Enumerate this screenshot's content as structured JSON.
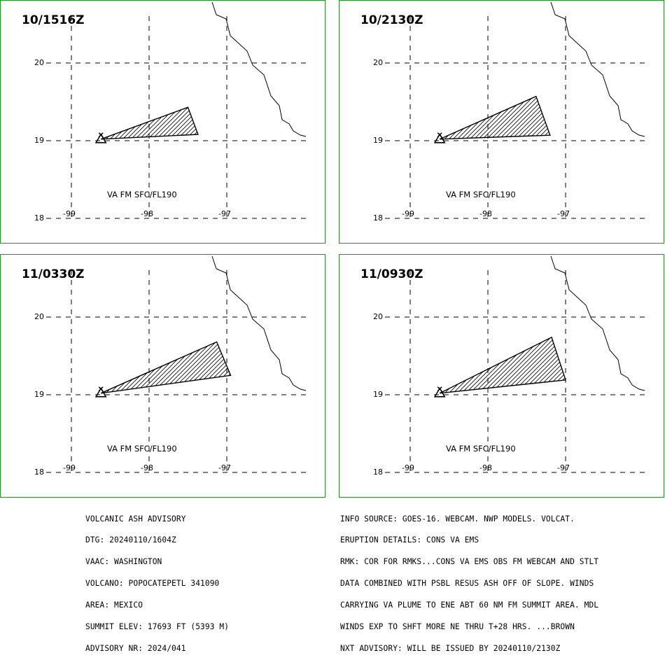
{
  "colors": {
    "border": "#2e8b2e",
    "lines": "#000000",
    "background": "#ffffff"
  },
  "map_axes": {
    "lat_labels": [
      "20",
      "19",
      "18"
    ],
    "lon_labels": [
      "-99",
      "-98",
      "-97"
    ],
    "lat_values": [
      20,
      19,
      18
    ],
    "lon_values": [
      -99,
      -98,
      -97
    ]
  },
  "volcano": {
    "lon": -98.62,
    "lat": 19.02,
    "icon": "volcano-triangle-icon"
  },
  "panels": [
    {
      "time": "10/1516Z",
      "label": "VA FM SFC/FL190",
      "polygon": [
        [
          -98.62,
          19.02
        ],
        [
          -97.5,
          19.43
        ],
        [
          -97.37,
          19.08
        ],
        [
          -98.62,
          19.02
        ]
      ]
    },
    {
      "time": "10/2130Z",
      "label": "VA FM SFC/FL190",
      "polygon": [
        [
          -98.62,
          19.02
        ],
        [
          -97.38,
          19.57
        ],
        [
          -97.2,
          19.07
        ],
        [
          -98.62,
          19.02
        ]
      ]
    },
    {
      "time": "11/0330Z",
      "label": "VA FM SFC/FL190",
      "polygon": [
        [
          -98.62,
          19.02
        ],
        [
          -97.13,
          19.68
        ],
        [
          -96.95,
          19.25
        ],
        [
          -98.62,
          19.02
        ]
      ]
    },
    {
      "time": "11/0930Z",
      "label": "VA FM SFC/FL190",
      "polygon": [
        [
          -98.62,
          19.02
        ],
        [
          -97.18,
          19.74
        ],
        [
          -97.0,
          19.19
        ],
        [
          -98.62,
          19.02
        ]
      ]
    }
  ],
  "advisory_left": [
    "VOLCANIC ASH ADVISORY",
    "DTG: 20240110/1604Z",
    "VAAC: WASHINGTON",
    "VOLCANO: POPOCATEPETL 341090",
    "AREA: MEXICO",
    "SUMMIT ELEV: 17693 FT (5393 M)",
    "ADVISORY NR: 2024/041"
  ],
  "advisory_right": [
    "INFO SOURCE: GOES-16. WEBCAM. NWP MODELS. VOLCAT.",
    "ERUPTION DETAILS: CONS VA EMS",
    "RMK: COR FOR RMKS...CONS VA EMS OBS FM WEBCAM AND STLT",
    "DATA COMBINED WITH PSBL RESUS ASH OFF OF SLOPE. WINDS",
    "CARRYING VA PLUME TO ENE ABT 60 NM FM SUMMIT AREA. MDL",
    "WINDS EXP TO SHFT MORE NE THRU T+28 HRS. ...BROWN",
    "NXT ADVISORY: WILL BE ISSUED BY 20240110/2130Z"
  ]
}
